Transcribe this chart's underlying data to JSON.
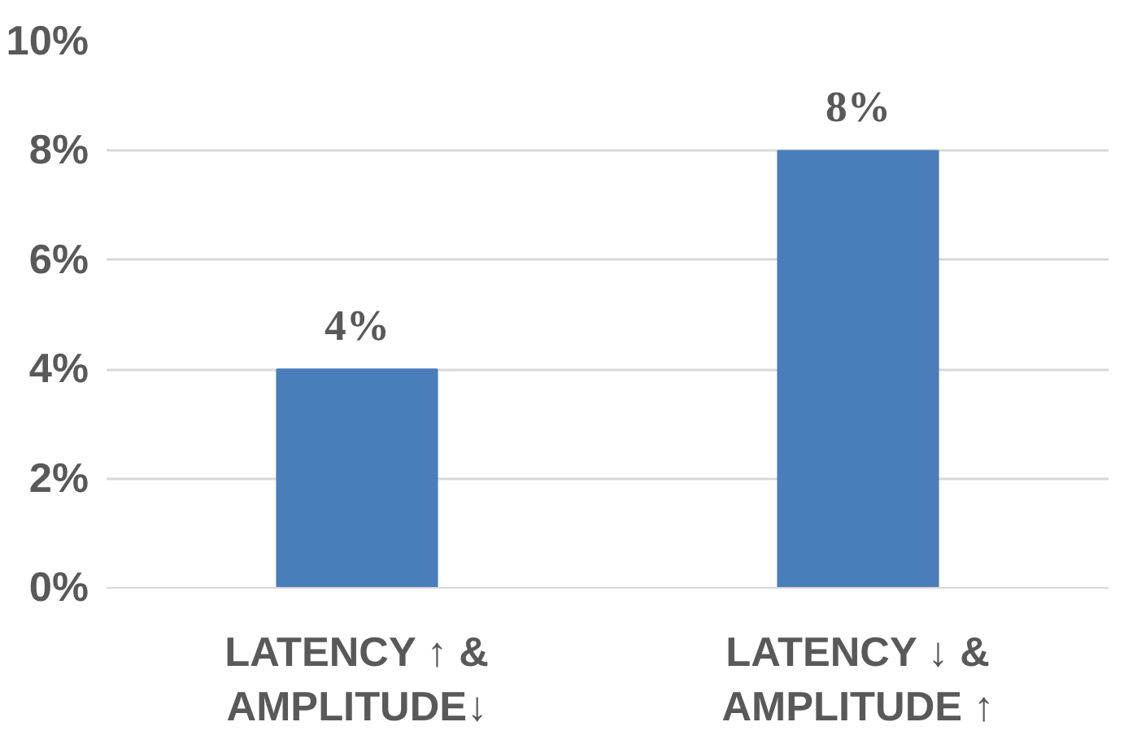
{
  "chart_data": {
    "type": "bar",
    "categories": [
      "LATENCY ↑ &\nAMPLITUDE↓",
      "LATENCY ↓ &\nAMPLITUDE ↑"
    ],
    "values": [
      4,
      8
    ],
    "color": "#4a7ebb",
    "value_labels": [
      "4%",
      "8%"
    ],
    "ylim": [
      0,
      10
    ],
    "yticks": [
      {
        "value": 0,
        "label": "0%"
      },
      {
        "value": 2,
        "label": "2%"
      },
      {
        "value": 4,
        "label": "4%"
      },
      {
        "value": 6,
        "label": "6%"
      },
      {
        "value": 8,
        "label": "8%"
      },
      {
        "value": 10,
        "label": "10%"
      }
    ],
    "grid": "y"
  }
}
